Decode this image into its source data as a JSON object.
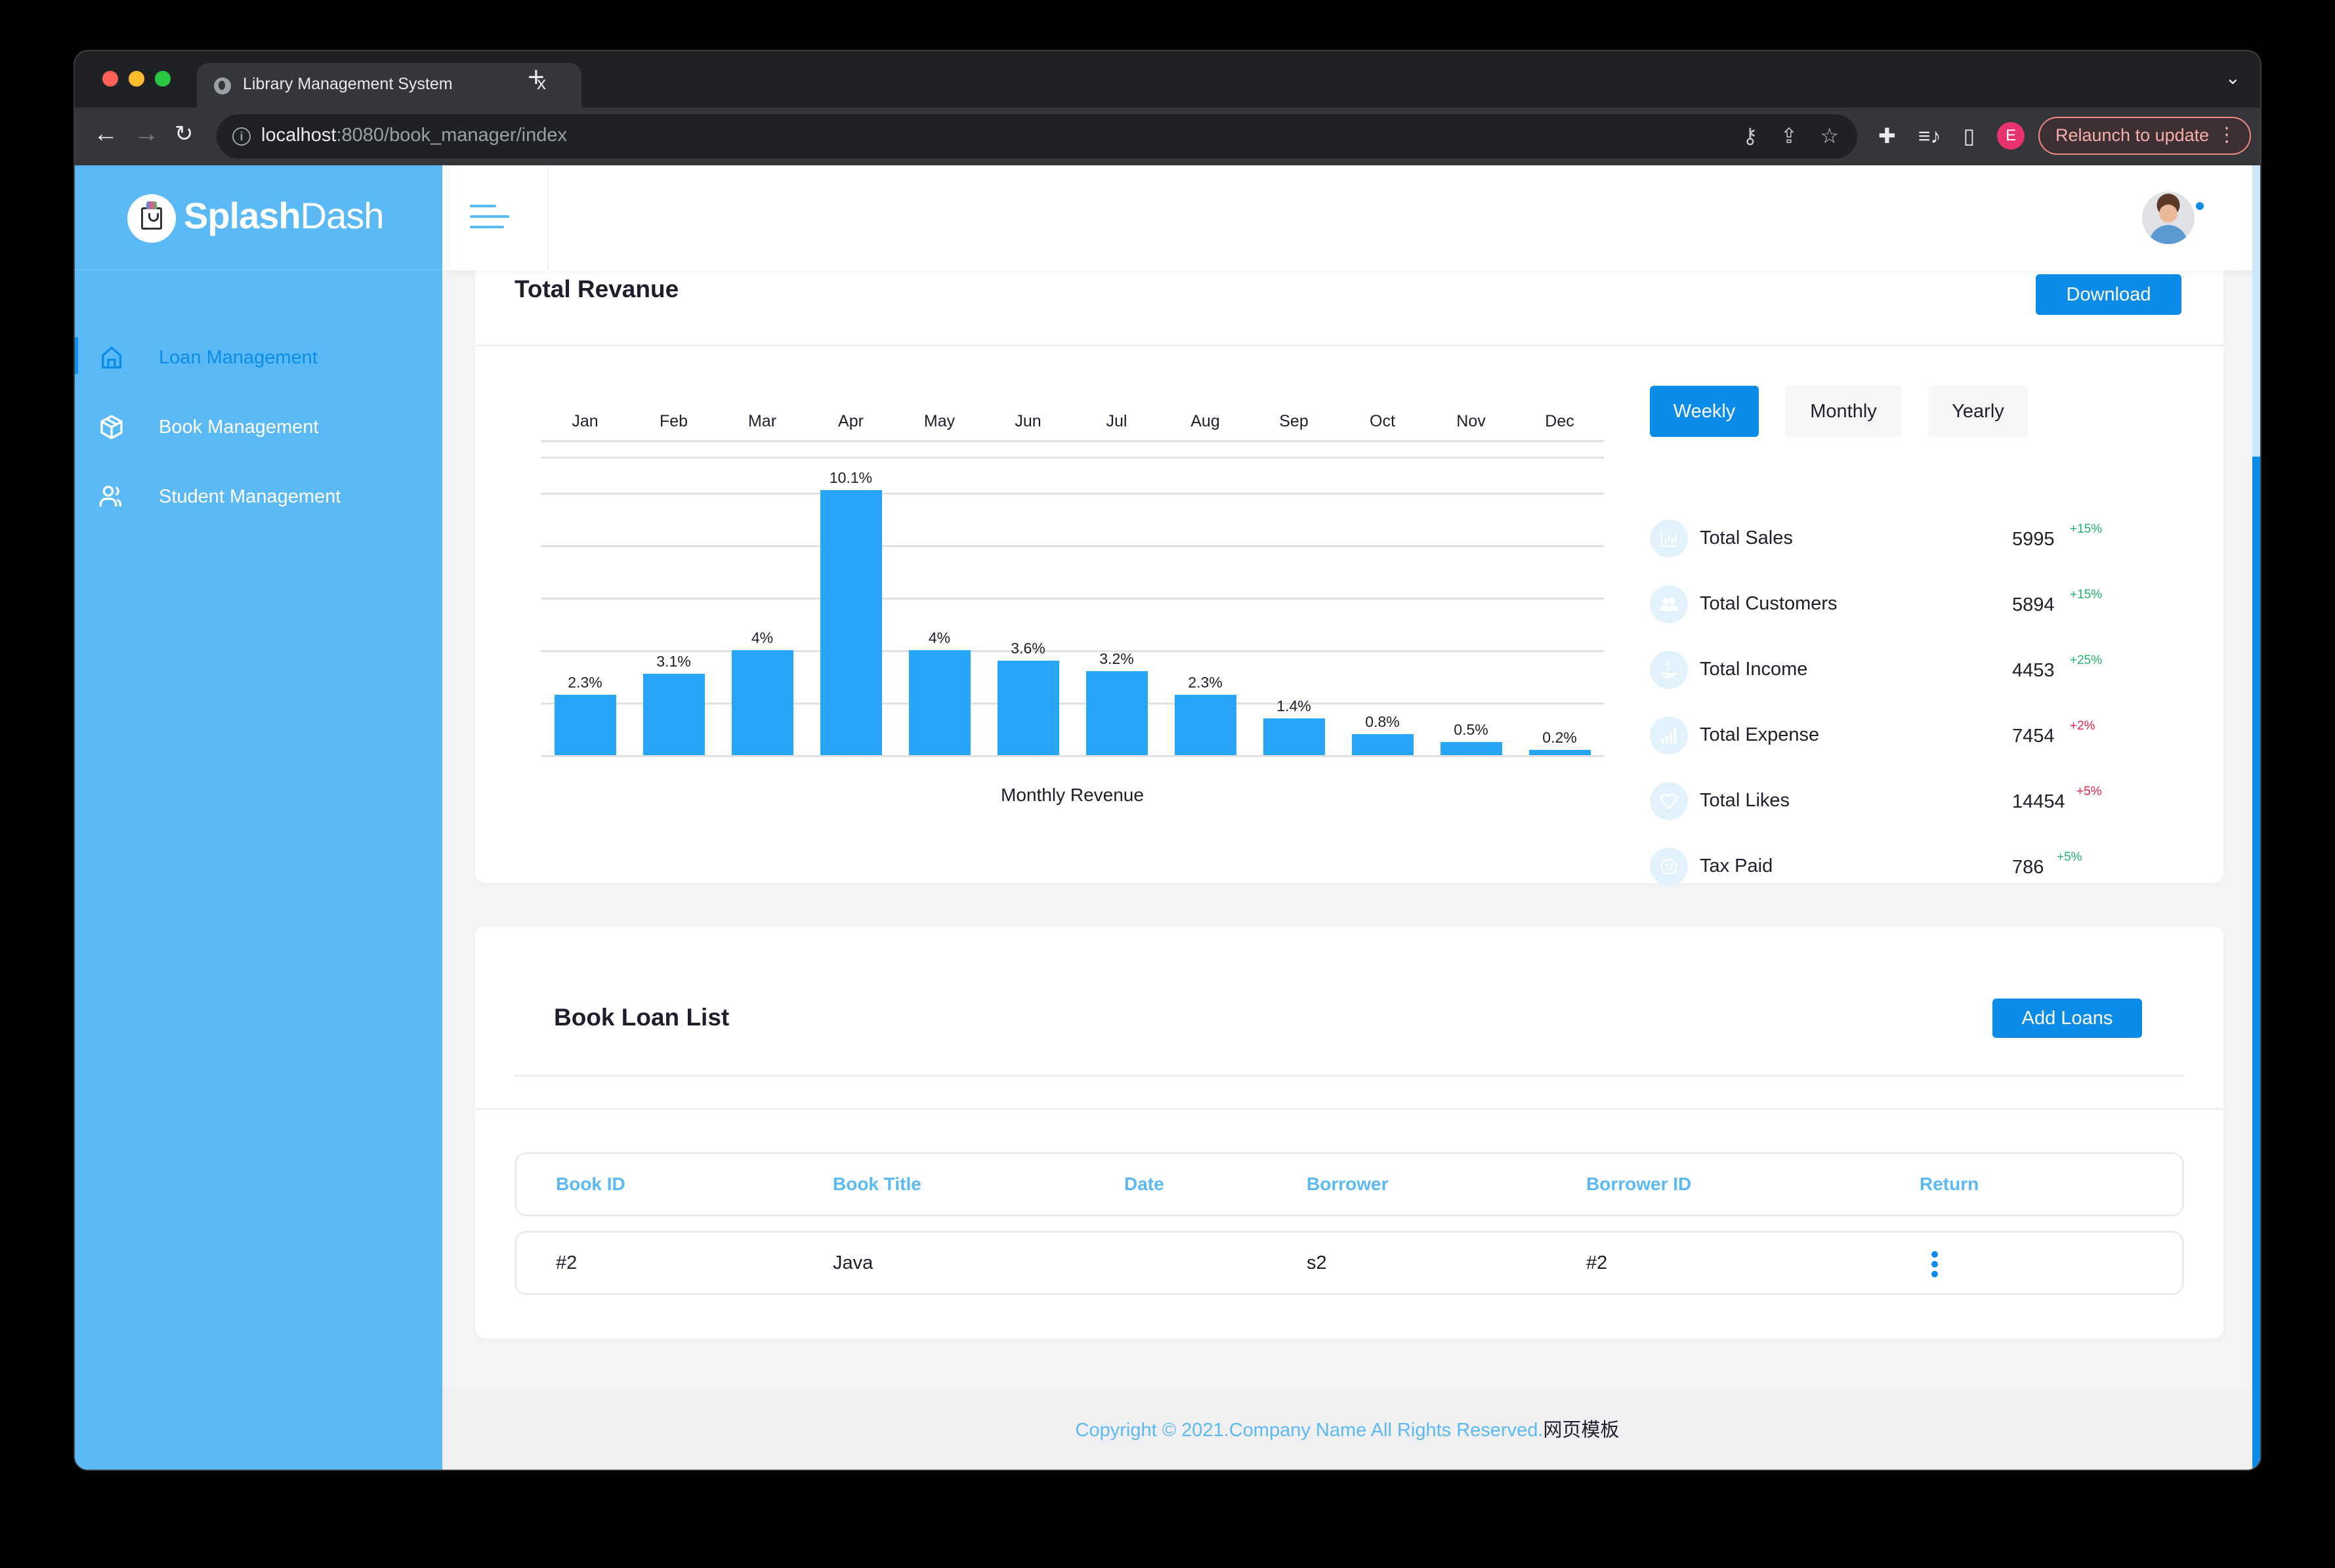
{
  "browser": {
    "tab_title": "Library Management System",
    "tab_close": "x",
    "new_tab": "+",
    "url_host": "localhost",
    "url_path": ":8080/book_manager/index",
    "profile_initial": "E",
    "relaunch_label": "Relaunch to update",
    "icons": [
      "back-icon",
      "forward-icon",
      "reload-icon",
      "info-icon",
      "key-icon",
      "share-icon",
      "star-icon",
      "extensions-icon",
      "media-icon",
      "sidepanel-icon"
    ]
  },
  "sidebar": {
    "brand_bold": "Splash",
    "brand_light": "Dash",
    "items": [
      {
        "label": "Loan Management",
        "icon": "home-icon",
        "active": true
      },
      {
        "label": "Book Management",
        "icon": "box-icon",
        "active": false
      },
      {
        "label": "Student Management",
        "icon": "users-icon",
        "active": false
      }
    ]
  },
  "revenue": {
    "title": "Total Revanue",
    "download_label": "Download",
    "periods": [
      "Weekly",
      "Monthly",
      "Yearly"
    ],
    "active_period": "Weekly",
    "stats": [
      {
        "label": "Total Sales",
        "value": "5995",
        "change": "+15%",
        "trend": "up",
        "icon": "bar-chart-icon"
      },
      {
        "label": "Total Customers",
        "value": "5894",
        "change": "+15%",
        "trend": "up",
        "icon": "customers-icon"
      },
      {
        "label": "Total Income",
        "value": "4453",
        "change": "+25%",
        "trend": "up",
        "icon": "income-icon"
      },
      {
        "label": "Total Expense",
        "value": "7454",
        "change": "+2%",
        "trend": "down",
        "icon": "signal-icon"
      },
      {
        "label": "Total Likes",
        "value": "14454",
        "change": "+5%",
        "trend": "down",
        "icon": "heart-icon"
      },
      {
        "label": "Tax Paid",
        "value": "786",
        "change": "+5%",
        "trend": "up",
        "icon": "sad-face-icon"
      }
    ]
  },
  "chart_data": {
    "type": "bar",
    "title": "",
    "categories": [
      "Jan",
      "Feb",
      "Mar",
      "Apr",
      "May",
      "Jun",
      "Jul",
      "Aug",
      "Sep",
      "Oct",
      "Nov",
      "Dec"
    ],
    "values": [
      2.3,
      3.1,
      4,
      10.1,
      4,
      3.6,
      3.2,
      2.3,
      1.4,
      0.8,
      0.5,
      0.2
    ],
    "value_labels": [
      "2.3%",
      "3.1%",
      "4%",
      "10.1%",
      "4%",
      "3.6%",
      "3.2%",
      "2.3%",
      "1.4%",
      "0.8%",
      "0.5%",
      "0.2%"
    ],
    "xlabel": "Monthly Revenue",
    "ylabel": "",
    "ylim": [
      0,
      12
    ],
    "grid": true,
    "x_axis_position": "top",
    "bar_color": "#27a5f6"
  },
  "loans": {
    "title": "Book Loan List",
    "add_label": "Add Loans",
    "columns": [
      "Book ID",
      "Book Title",
      "Date",
      "Borrower",
      "Borrower ID",
      "Return"
    ],
    "rows": [
      {
        "book_id": "#2",
        "book_title": "Java",
        "date": "",
        "borrower": "s2",
        "borrower_id": "#2"
      }
    ]
  },
  "footer": {
    "copyright": "Copyright © 2021.Company Name All Rights Reserved.",
    "cn_text": "网页模板"
  },
  "colors": {
    "sidebar": "#5bbaf6",
    "accent": "#0c8ce9",
    "bar": "#27a5f6",
    "up": "#1fb36b",
    "down": "#e5224c"
  }
}
